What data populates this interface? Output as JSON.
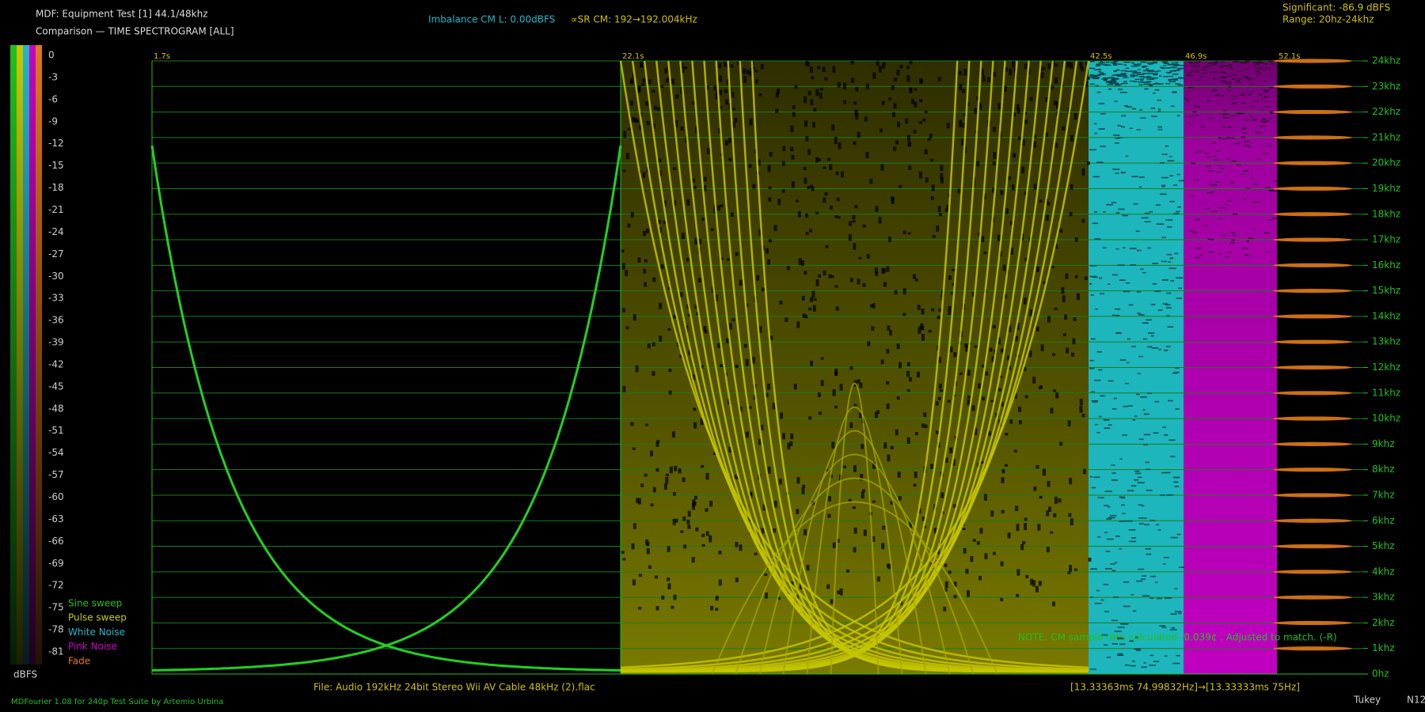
{
  "header": {
    "title": "MDF: Equipment Test [1] 44.1/48khz",
    "subtitle": "Comparison — TIME SPECTROGRAM [ALL]",
    "imbalance": "Imbalance CM L: 0.00dBFS",
    "sample_rate": "∝SR CM: 192→192.004kHz",
    "significant": "Significant: -86.9 dBFS",
    "range": "Range: 20hz-24khz"
  },
  "color_scale": {
    "ticks": [
      "0",
      "-3",
      "-6",
      "-9",
      "-12",
      "-15",
      "-18",
      "-21",
      "-24",
      "-27",
      "-30",
      "-33",
      "-36",
      "-39",
      "-42",
      "-45",
      "-48",
      "-51",
      "-54",
      "-57",
      "-60",
      "-63",
      "-66",
      "-69",
      "-72",
      "-75",
      "-78",
      "-81"
    ],
    "unit": "dBFS"
  },
  "legend": [
    {
      "name": "Sine sweep",
      "color": "#20c020"
    },
    {
      "name": "Pulse sweep",
      "color": "#c8c800"
    },
    {
      "name": "White Noise",
      "color": "#20b8c8"
    },
    {
      "name": "Pink Noise",
      "color": "#c800c8"
    },
    {
      "name": "Fade",
      "color": "#e07818"
    }
  ],
  "time_labels": [
    "1.7s",
    "22.1s",
    "42.5s",
    "46.9s",
    "52.1s"
  ],
  "frequency_labels": [
    "24khz",
    "23khz",
    "22khz",
    "21khz",
    "20khz",
    "19khz",
    "18khz",
    "17khz",
    "16khz",
    "15khz",
    "14khz",
    "13khz",
    "12khz",
    "11khz",
    "10khz",
    "9khz",
    "8khz",
    "7khz",
    "6khz",
    "5khz",
    "4khz",
    "3khz",
    "2khz",
    "1khz",
    "0hz"
  ],
  "note": "NOTE: CM sample rate calculated -0.039¢ . Adjusted to match. (-R)",
  "footer": {
    "file": "File: Audio  192kHz 24bit Stereo Wii AV Cable 48kHz (2).flac",
    "timing": "[13.33363ms 74.99832Hz]→[13.33333ms 75Hz]",
    "credits": "MDFourier 1.08 for 240p Test Suite by Artemio Urbina",
    "window": "Tukey",
    "mode": "N12"
  }
}
